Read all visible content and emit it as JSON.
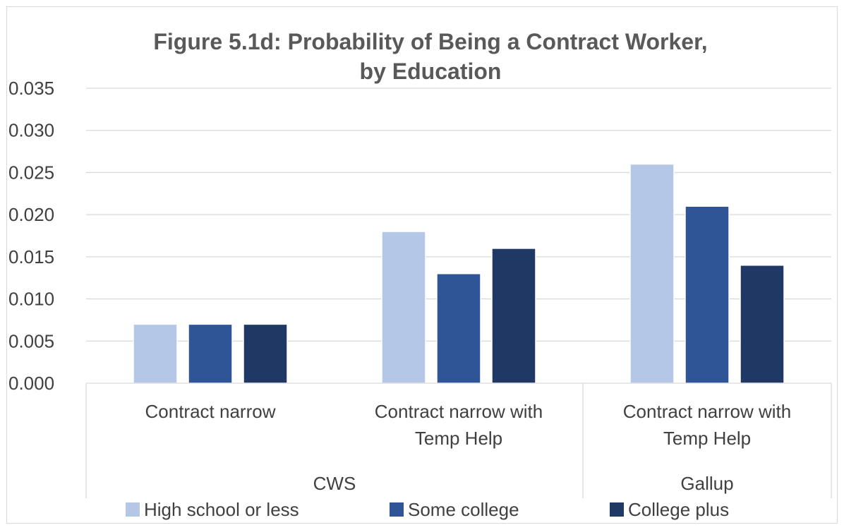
{
  "chart_data": {
    "type": "bar",
    "title": "Figure 5.1d: Probability of Being a Contract Worker,",
    "subtitle": "by Education",
    "groups": [
      {
        "label": "CWS",
        "categories": [
          "Contract narrow",
          "Contract narrow with\nTemp Help"
        ]
      },
      {
        "label": "Gallup",
        "categories": [
          "Contract narrow with\nTemp Help"
        ]
      }
    ],
    "categories": [
      "Contract narrow",
      "Contract narrow with\nTemp Help",
      "Contract narrow with\nTemp Help"
    ],
    "series": [
      {
        "name": "High school or less",
        "color": "#b4c7e7",
        "values": [
          0.007,
          0.018,
          0.026
        ]
      },
      {
        "name": "Some college",
        "color": "#2f5597",
        "values": [
          0.007,
          0.013,
          0.021
        ]
      },
      {
        "name": "College plus",
        "color": "#203864",
        "values": [
          0.007,
          0.016,
          0.014
        ]
      }
    ],
    "yticks": [
      "0.000",
      "0.005",
      "0.010",
      "0.015",
      "0.020",
      "0.025",
      "0.030",
      "0.035"
    ],
    "ylim": [
      0,
      0.035
    ],
    "grid": true,
    "legend_position": "bottom"
  }
}
